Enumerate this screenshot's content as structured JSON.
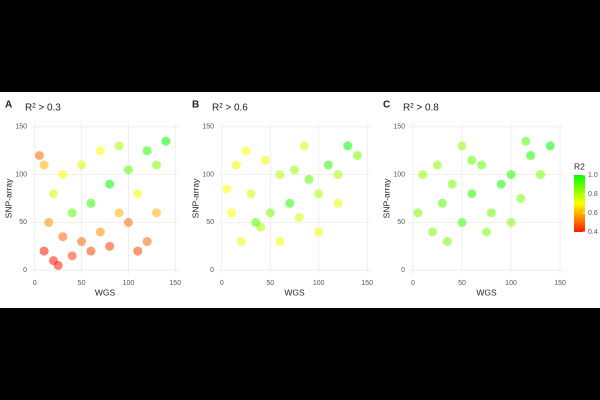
{
  "chart_data": [
    {
      "type": "scatter",
      "panel_label": "A",
      "title": "R² > 0.3",
      "x_label": "WGS",
      "y_label": "SNP-array",
      "xlim": [
        -4,
        154
      ],
      "ylim": [
        -4,
        154
      ],
      "xticks": [
        0,
        50,
        100,
        150
      ],
      "yticks": [
        0,
        50,
        100,
        150
      ],
      "grid": true,
      "x": [
        10,
        20,
        30,
        40,
        50,
        60,
        70,
        80,
        90,
        100,
        110,
        120,
        130,
        140,
        20,
        30,
        10,
        40,
        60,
        80,
        100,
        120,
        50,
        70,
        90,
        15,
        5,
        110,
        130,
        25
      ],
      "y": [
        20,
        10,
        35,
        15,
        30,
        20,
        40,
        25,
        60,
        50,
        80,
        30,
        110,
        135,
        80,
        100,
        110,
        60,
        70,
        90,
        105,
        125,
        110,
        125,
        130,
        50,
        120,
        20,
        60,
        5
      ],
      "r2": [
        0.4,
        0.4,
        0.5,
        0.45,
        0.5,
        0.45,
        0.55,
        0.45,
        0.6,
        0.5,
        0.7,
        0.5,
        0.85,
        1.0,
        0.75,
        0.7,
        0.6,
        0.9,
        0.95,
        1.0,
        0.9,
        0.95,
        0.75,
        0.7,
        0.8,
        0.55,
        0.5,
        0.45,
        0.6,
        0.4
      ]
    },
    {
      "type": "scatter",
      "panel_label": "B",
      "title": "R² > 0.6",
      "x_label": "WGS",
      "y_label": "SNP-array",
      "xlim": [
        -4,
        154
      ],
      "ylim": [
        -4,
        154
      ],
      "xticks": [
        0,
        50,
        100,
        150
      ],
      "yticks": [
        0,
        50,
        100,
        150
      ],
      "grid": true,
      "x": [
        10,
        15,
        20,
        30,
        40,
        50,
        60,
        70,
        80,
        90,
        100,
        110,
        120,
        130,
        140,
        25,
        45,
        85,
        100,
        60,
        35,
        75,
        5,
        120
      ],
      "y": [
        60,
        110,
        30,
        80,
        45,
        60,
        100,
        70,
        55,
        95,
        80,
        110,
        100,
        130,
        120,
        125,
        115,
        130,
        40,
        30,
        50,
        105,
        85,
        70
      ],
      "r2": [
        0.7,
        0.72,
        0.72,
        0.75,
        0.8,
        0.85,
        0.78,
        0.95,
        0.75,
        0.9,
        0.8,
        0.95,
        0.8,
        1.0,
        0.85,
        0.7,
        0.72,
        0.75,
        0.72,
        0.72,
        0.9,
        0.82,
        0.7,
        0.73
      ]
    },
    {
      "type": "scatter",
      "panel_label": "C",
      "title": "R² > 0.8",
      "x_label": "WGS",
      "y_label": "SNP-array",
      "xlim": [
        -4,
        154
      ],
      "ylim": [
        -4,
        154
      ],
      "xticks": [
        0,
        50,
        100,
        150
      ],
      "yticks": [
        0,
        50,
        100,
        150
      ],
      "grid": true,
      "x": [
        5,
        10,
        20,
        30,
        40,
        50,
        60,
        70,
        80,
        90,
        100,
        110,
        120,
        130,
        140,
        25,
        50,
        100,
        35,
        75,
        115,
        60
      ],
      "y": [
        60,
        100,
        40,
        70,
        90,
        50,
        80,
        110,
        60,
        90,
        100,
        75,
        120,
        100,
        130,
        110,
        130,
        50,
        30,
        40,
        135,
        115
      ],
      "r2": [
        0.85,
        0.83,
        0.85,
        0.9,
        0.86,
        0.92,
        0.95,
        0.88,
        0.88,
        0.98,
        0.95,
        0.85,
        0.97,
        0.86,
        1.0,
        0.84,
        0.83,
        0.84,
        0.86,
        0.85,
        0.9,
        0.88
      ]
    }
  ],
  "color_scale": {
    "title": "R2",
    "lim": [
      0.4,
      1.0
    ],
    "colors": [
      "#ff1a00",
      "#ffff00",
      "#00ff00"
    ],
    "ticks": [
      {
        "value": 1.0,
        "label": "1.0"
      },
      0.8,
      0.6,
      0.4
    ]
  }
}
